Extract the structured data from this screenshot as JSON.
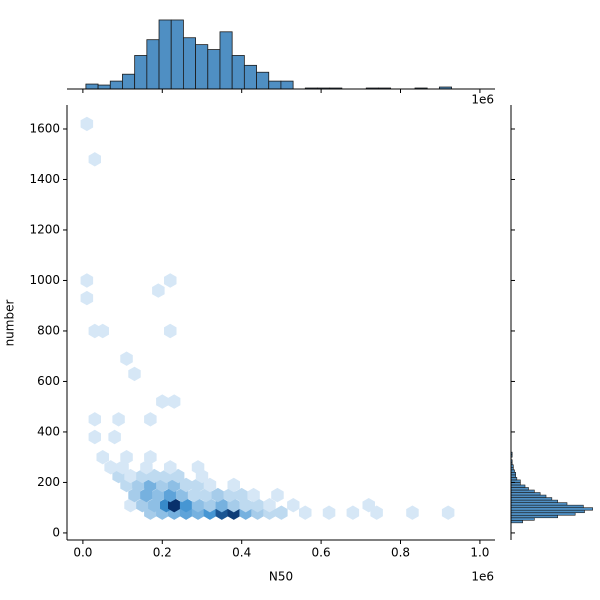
{
  "chart_data": [
    {
      "type": "hexbin",
      "xlabel": "N50",
      "ylabel": "number",
      "x_offset_label": "1e6",
      "xlim": [
        -40000,
        1038000
      ],
      "ylim": [
        -28,
        1695
      ],
      "xticks": [
        {
          "value": 0,
          "label": "0.0"
        },
        {
          "value": 200000,
          "label": "0.2"
        },
        {
          "value": 400000,
          "label": "0.4"
        },
        {
          "value": 600000,
          "label": "0.6"
        },
        {
          "value": 800000,
          "label": "0.8"
        },
        {
          "value": 1000000,
          "label": "1.0"
        }
      ],
      "yticks": [
        0,
        200,
        400,
        600,
        800,
        1000,
        1200,
        1400,
        1600
      ],
      "colors": [
        "#eef5fc",
        "#3a8fd0",
        "#08306b"
      ],
      "x": [
        170000,
        200000,
        230000,
        260000,
        290000,
        320000,
        350000,
        380000,
        410000,
        440000,
        470000,
        500000,
        560000,
        620000,
        680000,
        740000,
        830000,
        920000,
        120000,
        150000,
        180000,
        210000,
        230000,
        260000,
        290000,
        320000,
        350000,
        380000,
        410000,
        440000,
        470000,
        530000,
        720000,
        130000,
        160000,
        190000,
        220000,
        250000,
        280000,
        310000,
        340000,
        370000,
        400000,
        430000,
        490000,
        110000,
        140000,
        170000,
        200000,
        230000,
        260000,
        290000,
        320000,
        380000,
        90000,
        120000,
        150000,
        180000,
        210000,
        240000,
        300000,
        70000,
        100000,
        160000,
        220000,
        290000,
        50000,
        110000,
        170000,
        30000,
        80000,
        30000,
        90000,
        170000,
        200000,
        230000,
        130000,
        110000,
        30000,
        50000,
        220000,
        190000,
        10000,
        220000,
        10000,
        30000,
        10000
      ],
      "y": [
        80,
        80,
        80,
        80,
        80,
        80,
        80,
        80,
        80,
        80,
        80,
        80,
        80,
        80,
        80,
        80,
        80,
        80,
        110,
        110,
        110,
        110,
        110,
        110,
        110,
        110,
        110,
        110,
        110,
        110,
        110,
        110,
        110,
        150,
        150,
        150,
        150,
        150,
        150,
        150,
        150,
        150,
        150,
        150,
        150,
        190,
        190,
        190,
        190,
        190,
        190,
        190,
        190,
        190,
        225,
        225,
        225,
        225,
        225,
        225,
        225,
        260,
        260,
        260,
        260,
        260,
        300,
        300,
        300,
        380,
        380,
        450,
        450,
        450,
        520,
        520,
        630,
        690,
        800,
        800,
        800,
        960,
        1000,
        1000,
        930,
        1480,
        1620
      ],
      "counts": [
        3,
        4,
        5,
        6,
        5,
        7,
        12,
        14,
        5,
        3,
        2,
        2,
        1,
        1,
        1,
        1,
        1,
        1,
        1,
        3,
        4,
        8,
        15,
        7,
        4,
        3,
        5,
        3,
        2,
        2,
        1,
        1,
        1,
        3,
        5,
        4,
        6,
        4,
        2,
        2,
        3,
        2,
        2,
        1,
        1,
        2,
        3,
        5,
        3,
        4,
        2,
        2,
        1,
        1,
        2,
        1,
        2,
        2,
        2,
        2,
        1,
        1,
        1,
        1,
        1,
        1,
        1,
        1,
        1,
        1,
        1,
        1,
        1,
        1,
        1,
        1,
        1,
        1,
        1,
        1,
        1,
        1,
        1,
        1,
        1,
        1,
        1
      ]
    },
    {
      "type": "histogram",
      "orientation": "vertical",
      "x_offset_label": "1e6",
      "color": "#4f8fc3",
      "xlim": [
        -40000,
        1038000
      ],
      "ylim": [
        0,
        72
      ],
      "xticks": [
        0,
        200000,
        400000,
        600000,
        800000,
        1000000
      ],
      "bins": [
        7600,
        38300,
        69000,
        99700,
        130400,
        161100,
        191800,
        222500,
        253200,
        283900,
        314600,
        345300,
        376000,
        406700,
        437400,
        468100,
        498800,
        529500,
        560200,
        590900,
        621600,
        652300,
        683000,
        713700,
        744400,
        775100,
        805800,
        836500,
        867200,
        897900,
        928600
      ],
      "counts": [
        5,
        4,
        8,
        15,
        34,
        50,
        70,
        70,
        52,
        45,
        40,
        58,
        34,
        24,
        17,
        8,
        8,
        0,
        1,
        1,
        1,
        0,
        0,
        1,
        1,
        0,
        0,
        1,
        0,
        2
      ]
    },
    {
      "type": "histogram",
      "orientation": "horizontal",
      "color": "#4f8fc3",
      "ylim": [
        -28,
        1695
      ],
      "xlim": [
        0,
        72
      ],
      "yticks": [
        0,
        200,
        400,
        600,
        800,
        1000,
        1200,
        1400,
        1600
      ],
      "bins": [
        40,
        50,
        60,
        70,
        80,
        90,
        100,
        110,
        120,
        130,
        140,
        150,
        160,
        170,
        180,
        190,
        200,
        210,
        220,
        230,
        240,
        250,
        260,
        270,
        280,
        290,
        300,
        310,
        320,
        330
      ],
      "counts": [
        10,
        20,
        40,
        55,
        63,
        70,
        62,
        48,
        40,
        35,
        30,
        25,
        20,
        15,
        12,
        8,
        8,
        5,
        4,
        4,
        3,
        2,
        2,
        1,
        1,
        0,
        1,
        1,
        0
      ]
    }
  ]
}
